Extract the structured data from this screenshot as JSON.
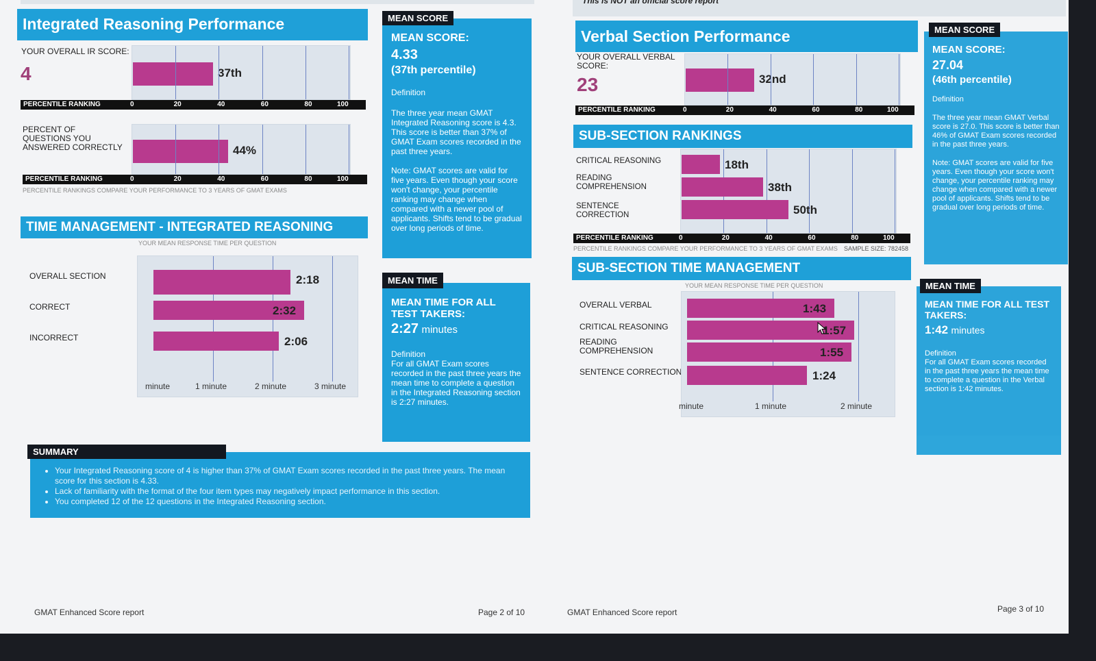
{
  "notice": "This is NOT an official score report",
  "left": {
    "ir_title": "Integrated Reasoning Performance",
    "overall_label": "YOUR OVERALL IR SCORE:",
    "overall_score": "4",
    "overall_percentile_label": "37th",
    "overall_percentile": 37,
    "pct_label": "PERCENT OF QUESTIONS YOU ANSWERED CORRECTLY",
    "pct_value_label": "44%",
    "pct_value": 44,
    "ranking_label": "PERCENTILE RANKING",
    "ticks": [
      "0",
      "20",
      "40",
      "60",
      "80",
      "100"
    ],
    "compare_note": "PERCENTILE RANKINGS COMPARE YOUR PERFORMANCE TO 3 YEARS OF GMAT EXAMS",
    "time_title": "TIME MANAGEMENT - INTEGRATED REASONING",
    "time_subtitle": "YOUR MEAN RESPONSE TIME PER QUESTION",
    "time_rows": [
      {
        "label": "OVERALL SECTION",
        "time": "2:18",
        "seconds": 138
      },
      {
        "label": "CORRECT",
        "time": "2:32",
        "seconds": 152
      },
      {
        "label": "INCORRECT",
        "time": "2:06",
        "seconds": 126
      }
    ],
    "time_ticks": [
      "minute",
      "1 minute",
      "2 minute",
      "3 minute"
    ]
  },
  "ir_mean_panel": {
    "tag": "MEAN SCORE",
    "heading": "MEAN SCORE:",
    "value": "4.33",
    "percentile": "(37th percentile)",
    "def_label": "Definition",
    "def_text": "The three year mean GMAT Integrated Reasoning score is 4.3. This score is better than 37% of GMAT Exam scores recorded in the past three years.",
    "note": "Note: GMAT scores are valid for five years. Even though your score won't change, your percentile ranking may change when compared with a newer pool of applicants. Shifts tend to be gradual over long periods of time."
  },
  "ir_time_panel": {
    "tag": "MEAN TIME",
    "heading": "MEAN TIME FOR ALL TEST TAKERS:",
    "value": "2:27",
    "unit": "minutes",
    "def_label": "Definition",
    "def_text": "For all GMAT Exam scores recorded in the past three years the mean time to complete a question in the Integrated Reasoning section is 2:27 minutes."
  },
  "summary": {
    "tag": "SUMMARY",
    "items": [
      "Your Integrated Reasoning score of 4 is higher than 37% of GMAT Exam scores recorded in the past three years. The mean score for this section is 4.33.",
      "Lack of familiarity with the format of the four item types may negatively impact performance in this section.",
      "You completed 12 of the 12 questions in the Integrated Reasoning section."
    ]
  },
  "right": {
    "verbal_title": "Verbal Section Performance",
    "overall_label": "YOUR OVERALL VERBAL SCORE:",
    "overall_score": "23",
    "overall_percentile_label": "32nd",
    "overall_percentile": 32,
    "ranking_label": "PERCENTILE RANKING",
    "ticks": [
      "0",
      "20",
      "40",
      "60",
      "80",
      "100"
    ],
    "sub_title": "SUB-SECTION RANKINGS",
    "sub_rows": [
      {
        "label": "CRITICAL REASONING",
        "pct_label": "18th",
        "pct": 18
      },
      {
        "label": "READING COMPREHENSION",
        "pct_label": "38th",
        "pct": 38
      },
      {
        "label": "SENTENCE CORRECTION",
        "pct_label": "50th",
        "pct": 50
      }
    ],
    "compare_note": "PERCENTILE RANKINGS COMPARE YOUR PERFORMANCE TO 3 YEARS OF GMAT EXAMS",
    "sample_size": "SAMPLE SIZE: 782458",
    "time_title": "SUB-SECTION TIME MANAGEMENT",
    "time_subtitle": "YOUR MEAN RESPONSE TIME PER QUESTION",
    "time_rows": [
      {
        "label": "OVERALL VERBAL",
        "time": "1:43",
        "seconds": 103
      },
      {
        "label": "CRITICAL REASONING",
        "time": "1:57",
        "seconds": 117
      },
      {
        "label": "READING COMPREHENSION",
        "time": "1:55",
        "seconds": 115
      },
      {
        "label": "SENTENCE CORRECTION",
        "time": "1:24",
        "seconds": 84
      }
    ],
    "time_ticks": [
      "minute",
      "1 minute",
      "2 minute"
    ]
  },
  "verbal_mean_panel": {
    "tag": "MEAN SCORE",
    "heading": "MEAN SCORE:",
    "value": "27.04",
    "percentile": "(46th percentile)",
    "def_label": "Definition",
    "def_text": "The three year mean GMAT Verbal score is 27.0. This score is better than 46% of GMAT Exam scores recorded in the past three years.",
    "note": "Note: GMAT scores are valid for five years. Even though your score won't change, your percentile ranking may change when compared with a newer pool of applicants. Shifts tend to be gradual over long periods of time."
  },
  "verbal_time_panel": {
    "tag": "MEAN TIME",
    "heading": "MEAN TIME FOR ALL TEST TAKERS:",
    "value": "1:42",
    "unit": "minutes",
    "def_label": "Definition",
    "def_text": "For all GMAT Exam scores recorded in the past three years the mean time to complete a question in the Verbal section is 1:42 minutes."
  },
  "footer": {
    "left_report": "GMAT Enhanced Score report",
    "left_page": "Page 2 of 10",
    "right_report": "GMAT Enhanced Score report",
    "right_page": "Page 3 of 10"
  },
  "colors": {
    "accent": "#1fa0d8",
    "bar": "#b83a8e",
    "score": "#a0407a"
  }
}
